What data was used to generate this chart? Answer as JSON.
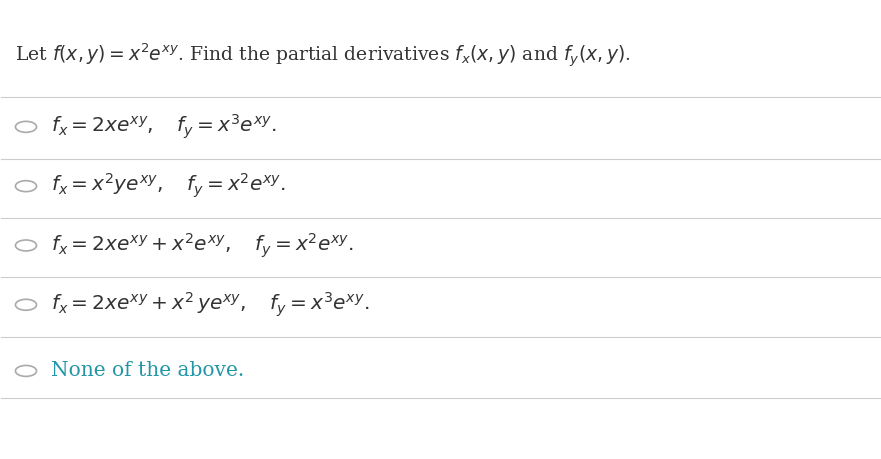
{
  "background_color": "#ffffff",
  "title_text": "Let $f(x, y) = x^2 e^{xy}$. Find the partial derivatives $f_x(x, y)$ and $f_y(x, y)$.",
  "title_color": "#333333",
  "title_fontsize": 13.5,
  "options": [
    "$f_x = 2xe^{xy}, \\quad f_y = x^3 e^{xy}.$",
    "$f_x = x^2 ye^{xy}, \\quad f_y = x^2 e^{xy}.$",
    "$f_x = 2xe^{xy} + x^2 e^{xy}, \\quad f_y = x^2 e^{xy}.$",
    "$f_x = 2xe^{xy} + x^2\\, ye^{xy}, \\quad f_y = x^3 e^{xy}.$",
    "None of the above."
  ],
  "option_colors": [
    "#333333",
    "#333333",
    "#333333",
    "#333333",
    "#2196a6"
  ],
  "option_fontsize": 14.5,
  "circle_color": "#aaaaaa",
  "line_color": "#cccccc",
  "fig_width": 8.81,
  "fig_height": 4.59,
  "dpi": 100
}
